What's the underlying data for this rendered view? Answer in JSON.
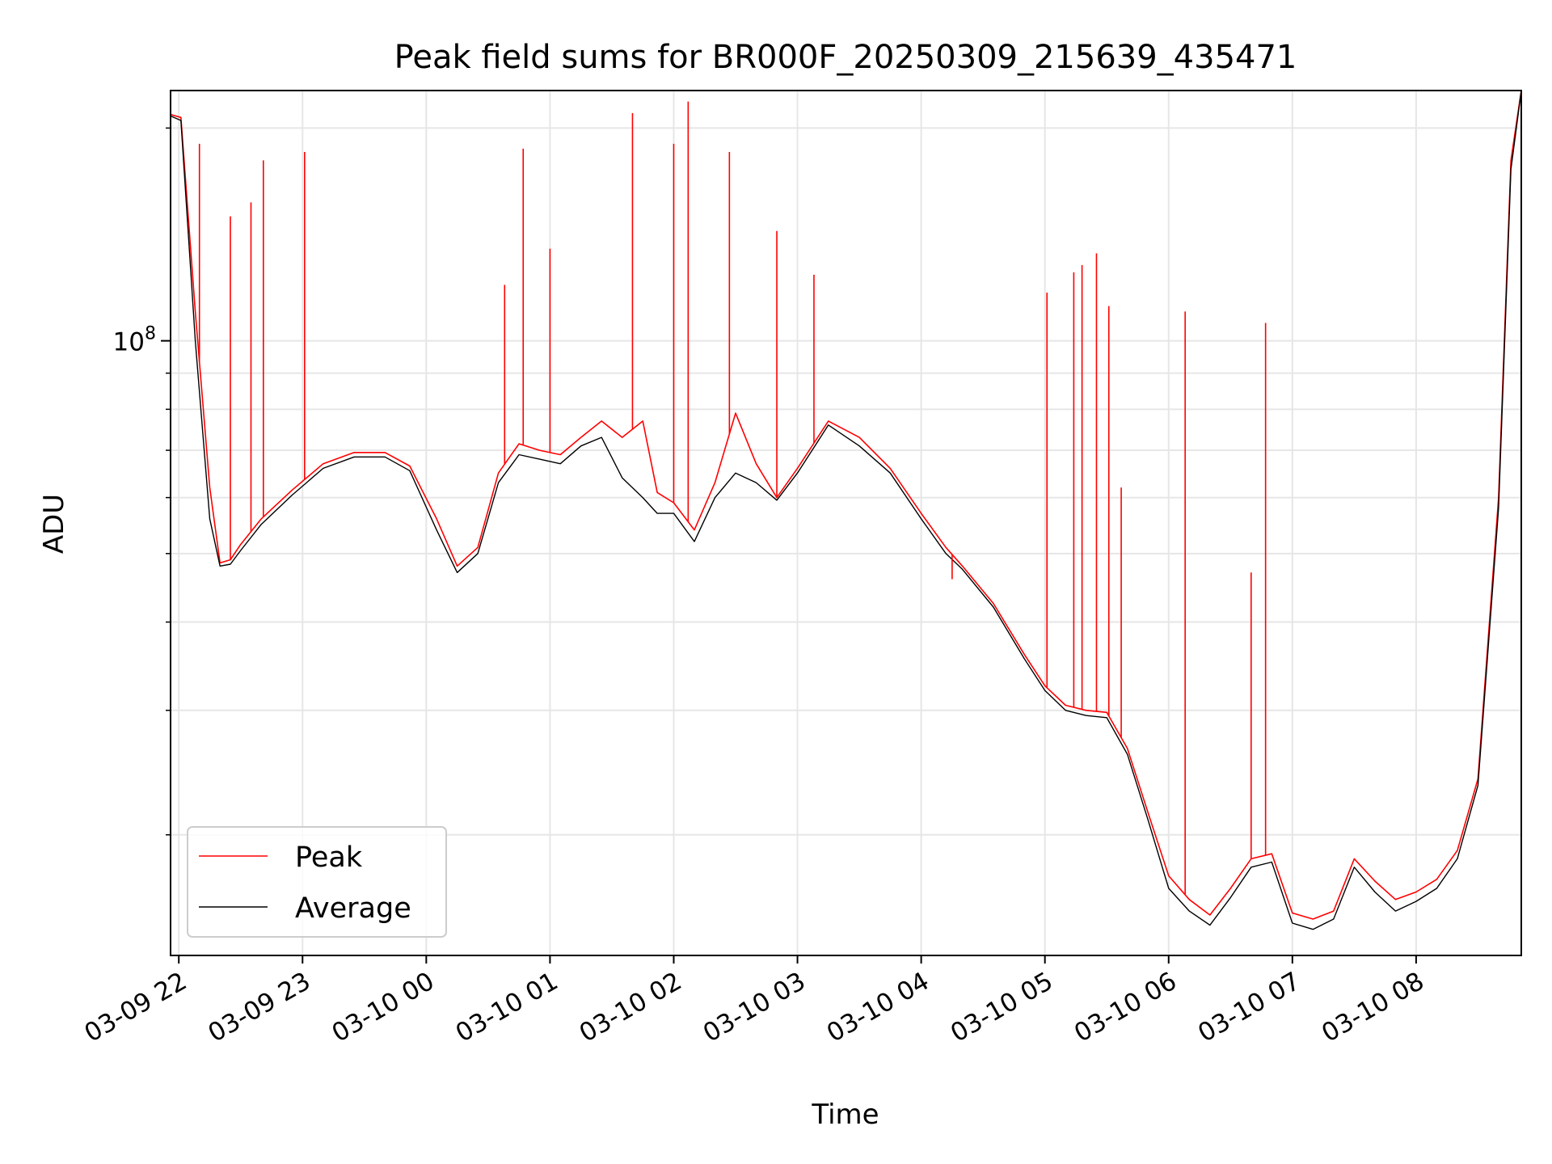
{
  "chart_data": {
    "type": "line",
    "title": "Peak field sums for BR000F_20250309_215639_435471",
    "xlabel": "Time",
    "ylabel": "ADU",
    "yscale": "log",
    "xlim": [
      "2025-03-09 21:56",
      "2025-03-10 08:51"
    ],
    "ylim": [
      13500000,
      226000000
    ],
    "x_tick_labels": [
      "03-09 22",
      "03-09 23",
      "03-10 00",
      "03-10 01",
      "03-10 02",
      "03-10 03",
      "03-10 04",
      "03-10 05",
      "03-10 06",
      "03-10 07",
      "03-10 08"
    ],
    "y_tick_labels": [
      {
        "base": "10",
        "exp": "8"
      }
    ],
    "grid": true,
    "legend_position": "lower-left",
    "series": [
      {
        "name": "Peak",
        "color": "#ff0000",
        "x": [
          "2025-03-09 21:56",
          "2025-03-09 22:01",
          "2025-03-09 22:08",
          "2025-03-09 22:15",
          "2025-03-09 22:20",
          "2025-03-09 22:25",
          "2025-03-09 22:30",
          "2025-03-09 22:40",
          "2025-03-09 22:55",
          "2025-03-09 23:10",
          "2025-03-09 23:25",
          "2025-03-09 23:40",
          "2025-03-09 23:52",
          "2025-03-10 00:05",
          "2025-03-10 00:15",
          "2025-03-10 00:25",
          "2025-03-10 00:35",
          "2025-03-10 00:45",
          "2025-03-10 00:55",
          "2025-03-10 01:05",
          "2025-03-10 01:15",
          "2025-03-10 01:25",
          "2025-03-10 01:35",
          "2025-03-10 01:45",
          "2025-03-10 01:52",
          "2025-03-10 02:00",
          "2025-03-10 02:10",
          "2025-03-10 02:20",
          "2025-03-10 02:30",
          "2025-03-10 02:40",
          "2025-03-10 02:50",
          "2025-03-10 03:00",
          "2025-03-10 03:15",
          "2025-03-10 03:30",
          "2025-03-10 03:45",
          "2025-03-10 04:00",
          "2025-03-10 04:12",
          "2025-03-10 04:20",
          "2025-03-10 04:35",
          "2025-03-10 04:50",
          "2025-03-10 05:00",
          "2025-03-10 05:10",
          "2025-03-10 05:20",
          "2025-03-10 05:30",
          "2025-03-10 05:40",
          "2025-03-10 05:50",
          "2025-03-10 06:00",
          "2025-03-10 06:10",
          "2025-03-10 06:20",
          "2025-03-10 06:30",
          "2025-03-10 06:40",
          "2025-03-10 06:50",
          "2025-03-10 07:00",
          "2025-03-10 07:10",
          "2025-03-10 07:20",
          "2025-03-10 07:30",
          "2025-03-10 07:40",
          "2025-03-10 07:50",
          "2025-03-10 08:00",
          "2025-03-10 08:10",
          "2025-03-10 08:20",
          "2025-03-10 08:30",
          "2025-03-10 08:40",
          "2025-03-10 08:46",
          "2025-03-10 08:51"
        ],
        "y": [
          209000000,
          207000000,
          110000000,
          62000000,
          48500000,
          49000000,
          51500000,
          56000000,
          61500000,
          67000000,
          69500000,
          69500000,
          66500000,
          56000000,
          48000000,
          51000000,
          65000000,
          71500000,
          70000000,
          69000000,
          73000000,
          77000000,
          73000000,
          77000000,
          61000000,
          59000000,
          54000000,
          63000000,
          79000000,
          67000000,
          60000000,
          66000000,
          77000000,
          73000000,
          66000000,
          57000000,
          51000000,
          48000000,
          42500000,
          36000000,
          32500000,
          30500000,
          30000000,
          29800000,
          26500000,
          21500000,
          17500000,
          16200000,
          15400000,
          16800000,
          18500000,
          18800000,
          15500000,
          15200000,
          15600000,
          18500000,
          17200000,
          16200000,
          16600000,
          17300000,
          19000000,
          24000000,
          60000000,
          180000000,
          226000000
        ],
        "spikes": [
          {
            "x": "2025-03-09 22:10",
            "y": 190000000
          },
          {
            "x": "2025-03-09 22:25",
            "y": 150000000
          },
          {
            "x": "2025-03-09 22:35",
            "y": 157000000
          },
          {
            "x": "2025-03-09 22:41",
            "y": 180000000
          },
          {
            "x": "2025-03-09 23:01",
            "y": 185000000
          },
          {
            "x": "2025-03-10 00:38",
            "y": 120000000
          },
          {
            "x": "2025-03-10 00:47",
            "y": 187000000
          },
          {
            "x": "2025-03-10 01:00",
            "y": 135000000
          },
          {
            "x": "2025-03-10 01:40",
            "y": 210000000
          },
          {
            "x": "2025-03-10 02:00",
            "y": 190000000
          },
          {
            "x": "2025-03-10 02:07",
            "y": 218000000
          },
          {
            "x": "2025-03-10 02:27",
            "y": 185000000
          },
          {
            "x": "2025-03-10 02:50",
            "y": 143000000
          },
          {
            "x": "2025-03-10 03:08",
            "y": 124000000
          },
          {
            "x": "2025-03-10 04:15",
            "y": 46000000
          },
          {
            "x": "2025-03-10 05:01",
            "y": 117000000
          },
          {
            "x": "2025-03-10 05:14",
            "y": 125000000
          },
          {
            "x": "2025-03-10 05:18",
            "y": 128000000
          },
          {
            "x": "2025-03-10 05:25",
            "y": 133000000
          },
          {
            "x": "2025-03-10 05:31",
            "y": 112000000
          },
          {
            "x": "2025-03-10 05:37",
            "y": 62000000
          },
          {
            "x": "2025-03-10 06:08",
            "y": 110000000
          },
          {
            "x": "2025-03-10 06:40",
            "y": 47000000
          },
          {
            "x": "2025-03-10 06:47",
            "y": 106000000
          }
        ]
      },
      {
        "name": "Average",
        "color": "#000000",
        "x": [
          "2025-03-09 21:56",
          "2025-03-09 22:01",
          "2025-03-09 22:08",
          "2025-03-09 22:15",
          "2025-03-09 22:20",
          "2025-03-09 22:25",
          "2025-03-09 22:30",
          "2025-03-09 22:40",
          "2025-03-09 22:55",
          "2025-03-09 23:10",
          "2025-03-09 23:25",
          "2025-03-09 23:40",
          "2025-03-09 23:52",
          "2025-03-10 00:05",
          "2025-03-10 00:15",
          "2025-03-10 00:25",
          "2025-03-10 00:35",
          "2025-03-10 00:45",
          "2025-03-10 00:55",
          "2025-03-10 01:05",
          "2025-03-10 01:15",
          "2025-03-10 01:25",
          "2025-03-10 01:35",
          "2025-03-10 01:45",
          "2025-03-10 01:52",
          "2025-03-10 02:00",
          "2025-03-10 02:10",
          "2025-03-10 02:20",
          "2025-03-10 02:30",
          "2025-03-10 02:40",
          "2025-03-10 02:50",
          "2025-03-10 03:00",
          "2025-03-10 03:15",
          "2025-03-10 03:30",
          "2025-03-10 03:45",
          "2025-03-10 04:00",
          "2025-03-10 04:12",
          "2025-03-10 04:20",
          "2025-03-10 04:35",
          "2025-03-10 04:50",
          "2025-03-10 05:00",
          "2025-03-10 05:10",
          "2025-03-10 05:20",
          "2025-03-10 05:30",
          "2025-03-10 05:40",
          "2025-03-10 05:50",
          "2025-03-10 06:00",
          "2025-03-10 06:10",
          "2025-03-10 06:20",
          "2025-03-10 06:30",
          "2025-03-10 06:40",
          "2025-03-10 06:50",
          "2025-03-10 07:00",
          "2025-03-10 07:10",
          "2025-03-10 07:20",
          "2025-03-10 07:30",
          "2025-03-10 07:40",
          "2025-03-10 07:50",
          "2025-03-10 08:00",
          "2025-03-10 08:10",
          "2025-03-10 08:20",
          "2025-03-10 08:30",
          "2025-03-10 08:40",
          "2025-03-10 08:46",
          "2025-03-10 08:51"
        ],
        "y": [
          208000000,
          205000000,
          100000000,
          56000000,
          48000000,
          48300000,
          50500000,
          55000000,
          60500000,
          66000000,
          68500000,
          68500000,
          65500000,
          54000000,
          47000000,
          50000000,
          63000000,
          69000000,
          68000000,
          67000000,
          71000000,
          73000000,
          64000000,
          60000000,
          57000000,
          57000000,
          52000000,
          60000000,
          65000000,
          63000000,
          59500000,
          65000000,
          76000000,
          71000000,
          65000000,
          56000000,
          50000000,
          47500000,
          42000000,
          35500000,
          32000000,
          30000000,
          29500000,
          29300000,
          26000000,
          21000000,
          16800000,
          15600000,
          14900000,
          16300000,
          18000000,
          18300000,
          15000000,
          14700000,
          15200000,
          18000000,
          16600000,
          15600000,
          16100000,
          16800000,
          18500000,
          23500000,
          58000000,
          175000000,
          226000000
        ]
      }
    ]
  }
}
